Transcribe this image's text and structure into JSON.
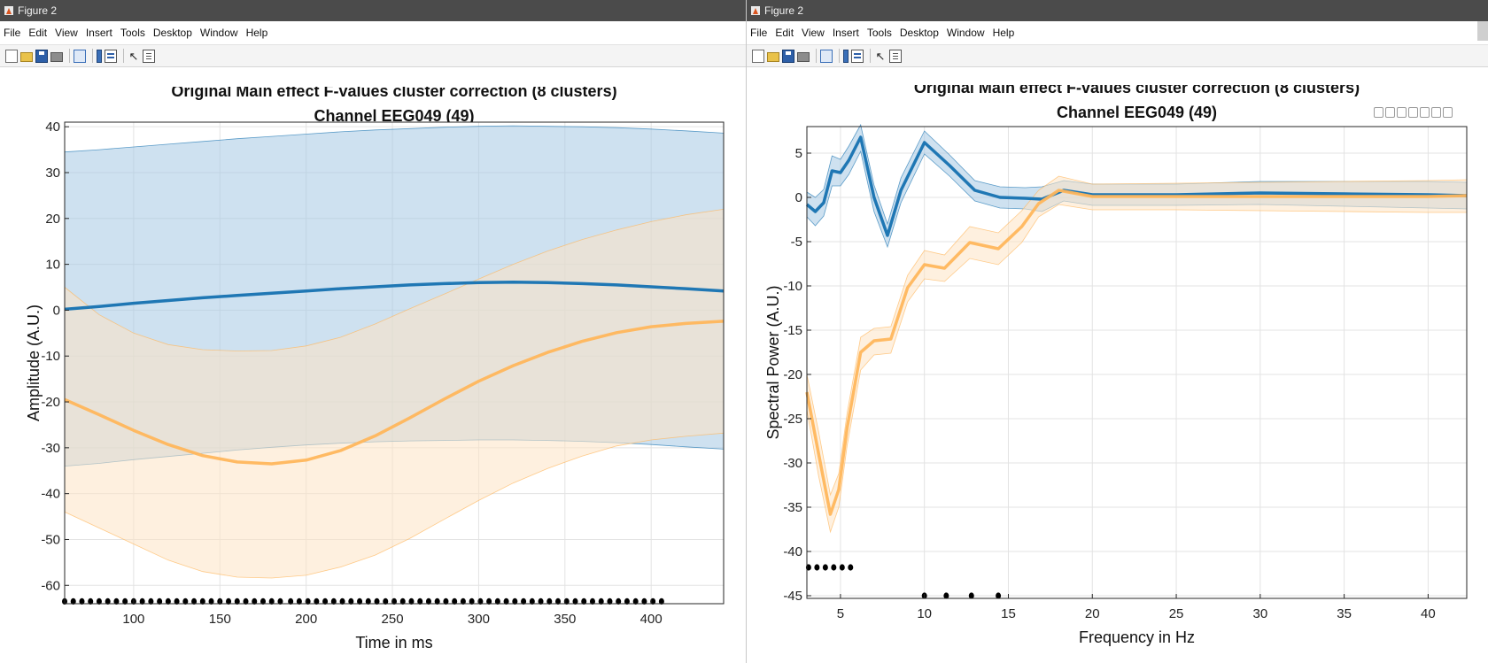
{
  "windows": [
    {
      "title": "Figure 2",
      "menu": [
        "File",
        "Edit",
        "View",
        "Insert",
        "Tools",
        "Desktop",
        "Window",
        "Help"
      ],
      "toolbar_icons": [
        "new-figure-icon",
        "open-file-icon",
        "save-icon",
        "print-icon",
        "link-plot-icon",
        "insert-colorbar-icon",
        "insert-legend-icon",
        "edit-plot-arrow-icon",
        "open-property-inspector-icon"
      ]
    },
    {
      "title": "Figure 2",
      "menu": [
        "File",
        "Edit",
        "View",
        "Insert",
        "Tools",
        "Desktop",
        "Window",
        "Help"
      ],
      "toolbar_icons": [
        "new-figure-icon",
        "open-file-icon",
        "save-icon",
        "print-icon",
        "link-plot-icon",
        "insert-colorbar-icon",
        "insert-legend-icon",
        "edit-plot-arrow-icon",
        "open-property-inspector-icon"
      ],
      "axes_toolbar_icons": [
        "export-icon",
        "brush-icon",
        "datatip-icon",
        "pan-icon",
        "zoom-in-icon",
        "zoom-out-icon",
        "home-icon"
      ]
    }
  ],
  "chart_data": [
    {
      "type": "line",
      "title": "Original Main effect F-values cluster correction (8 clusters)",
      "subtitle": "Channel EEG049 (49)",
      "xlabel": "Time in ms",
      "ylabel": "Amplitude (A.U.)",
      "xlim": [
        60,
        442
      ],
      "ylim": [
        -64,
        41
      ],
      "xticks": [
        100,
        150,
        200,
        250,
        300,
        350,
        400
      ],
      "yticks": [
        40,
        30,
        20,
        10,
        0,
        -10,
        -20,
        -30,
        -40,
        -50,
        -60
      ],
      "grid": true,
      "colors": {
        "blue": "#1f77b4",
        "blue_fill": "#a6c8e4",
        "orange": "#ffb65c",
        "orange_fill": "#fde3c4"
      },
      "series": [
        {
          "color": "blue",
          "x": [
            60,
            80,
            100,
            120,
            140,
            160,
            180,
            200,
            220,
            240,
            260,
            280,
            300,
            320,
            340,
            360,
            380,
            400,
            420,
            442
          ],
          "y": [
            0.2,
            0.8,
            1.5,
            2.1,
            2.7,
            3.2,
            3.7,
            4.2,
            4.7,
            5.1,
            5.5,
            5.8,
            6.0,
            6.1,
            6.0,
            5.8,
            5.5,
            5.1,
            4.7,
            4.2
          ],
          "upper": [
            34.5,
            35.0,
            35.6,
            36.2,
            36.8,
            37.4,
            37.9,
            38.4,
            38.9,
            39.3,
            39.6,
            39.9,
            40.1,
            40.2,
            40.1,
            40.0,
            39.8,
            39.5,
            39.1,
            38.6
          ],
          "lower": [
            -34.0,
            -33.4,
            -32.6,
            -31.9,
            -31.2,
            -30.5,
            -29.9,
            -29.4,
            -29.0,
            -28.7,
            -28.5,
            -28.4,
            -28.3,
            -28.3,
            -28.4,
            -28.6,
            -28.9,
            -29.3,
            -29.8,
            -30.3
          ]
        },
        {
          "color": "orange",
          "x": [
            60,
            80,
            100,
            120,
            140,
            160,
            180,
            200,
            220,
            240,
            260,
            280,
            300,
            320,
            340,
            360,
            380,
            400,
            420,
            442
          ],
          "y": [
            -19.5,
            -22.8,
            -26.2,
            -29.3,
            -31.7,
            -33.1,
            -33.5,
            -32.7,
            -30.6,
            -27.4,
            -23.5,
            -19.4,
            -15.5,
            -12.1,
            -9.2,
            -6.8,
            -4.9,
            -3.6,
            -2.9,
            -2.4
          ],
          "upper": [
            5.0,
            -1.0,
            -5.0,
            -7.5,
            -8.6,
            -8.9,
            -8.8,
            -7.8,
            -5.9,
            -3.0,
            0.3,
            3.5,
            6.8,
            10.0,
            12.9,
            15.4,
            17.5,
            19.3,
            20.8,
            22.0
          ],
          "lower": [
            -44.0,
            -47.5,
            -51.0,
            -54.5,
            -57.0,
            -58.2,
            -58.4,
            -57.8,
            -56.0,
            -53.4,
            -49.8,
            -45.6,
            -41.5,
            -37.7,
            -34.5,
            -31.8,
            -29.6,
            -28.3,
            -27.5,
            -26.8
          ]
        }
      ],
      "significance_markers": {
        "y": -63.5,
        "x": [
          60,
          65,
          70,
          75,
          80,
          85,
          90,
          95,
          100,
          105,
          110,
          115,
          120,
          125,
          130,
          135,
          140,
          145,
          150,
          155,
          160,
          165,
          170,
          175,
          180,
          185,
          191,
          196,
          201,
          206,
          211,
          216,
          221,
          226,
          231,
          236,
          241,
          246,
          251,
          256,
          261,
          266,
          271,
          276,
          281,
          286,
          291,
          296,
          301,
          306,
          311,
          316,
          321,
          326,
          331,
          336,
          341,
          346,
          351,
          356,
          361,
          366,
          371,
          376,
          381,
          386,
          391,
          396,
          401,
          406
        ]
      }
    },
    {
      "type": "line",
      "title": "Original Main effect F-values cluster correction (8 clusters)",
      "subtitle": "Channel EEG049 (49)",
      "xlabel": "Frequency in Hz",
      "ylabel": "Spectral Power (A.U.)",
      "xlim": [
        3,
        42.3
      ],
      "ylim": [
        -45.3,
        8
      ],
      "xticks": [
        5,
        10,
        15,
        20,
        25,
        30,
        35,
        40
      ],
      "yticks": [
        5,
        0,
        -5,
        -10,
        -15,
        -20,
        -25,
        -30,
        -35,
        -40,
        -45
      ],
      "grid": true,
      "colors": {
        "blue": "#1f77b4",
        "blue_fill": "#a6c8e4",
        "orange": "#ffb65c",
        "orange_fill": "#fde3c4"
      },
      "series": [
        {
          "color": "blue",
          "x": [
            3.0,
            3.5,
            4.0,
            4.5,
            5.0,
            5.5,
            6.2,
            7.0,
            7.8,
            8.6,
            10.0,
            11.5,
            13.0,
            14.5,
            16.0,
            17.0,
            18.3,
            20.0,
            25.0,
            30.0,
            35.0,
            40.0,
            42.3
          ],
          "y": [
            -0.8,
            -1.6,
            -0.6,
            3.0,
            2.8,
            4.2,
            6.8,
            0.0,
            -4.3,
            0.8,
            6.2,
            3.6,
            0.8,
            0.0,
            -0.1,
            -0.2,
            0.8,
            0.3,
            0.3,
            0.5,
            0.4,
            0.3,
            0.2
          ],
          "upper": [
            0.6,
            0.0,
            0.9,
            4.7,
            4.3,
            5.8,
            8.2,
            1.4,
            -3.0,
            2.2,
            7.5,
            4.8,
            1.9,
            1.2,
            1.1,
            1.2,
            1.9,
            1.5,
            1.5,
            1.8,
            1.8,
            1.8,
            1.7
          ],
          "lower": [
            -2.2,
            -3.2,
            -2.1,
            1.3,
            1.3,
            2.6,
            5.2,
            -1.6,
            -5.6,
            -0.6,
            4.9,
            2.4,
            -0.4,
            -1.2,
            -1.3,
            -1.6,
            -0.4,
            -0.9,
            -0.9,
            -0.8,
            -1.0,
            -1.2,
            -1.3
          ]
        },
        {
          "color": "orange",
          "x": [
            3.0,
            3.7,
            4.4,
            4.9,
            5.4,
            6.2,
            7.0,
            8.0,
            9.0,
            10.0,
            11.2,
            12.7,
            14.4,
            15.8,
            16.8,
            18.0,
            20.0,
            25.0,
            30.0,
            35.0,
            40.0,
            42.3
          ],
          "y": [
            -22.0,
            -29.0,
            -35.8,
            -33.0,
            -26.0,
            -17.5,
            -16.2,
            -16.0,
            -10.2,
            -7.6,
            -8.0,
            -5.1,
            -5.8,
            -3.3,
            -0.7,
            0.8,
            0.1,
            0.1,
            0.1,
            0.1,
            0.1,
            0.2
          ],
          "upper": [
            -20.0,
            -26.5,
            -33.6,
            -31.2,
            -24.3,
            -15.8,
            -14.8,
            -14.6,
            -8.8,
            -6.0,
            -6.5,
            -3.3,
            -4.0,
            -1.5,
            0.8,
            2.4,
            1.5,
            1.6,
            1.7,
            1.8,
            1.9,
            2.0
          ],
          "lower": [
            -24.0,
            -31.5,
            -37.8,
            -35.0,
            -28.0,
            -19.5,
            -17.8,
            -17.6,
            -11.8,
            -9.2,
            -9.5,
            -6.9,
            -7.6,
            -5.1,
            -2.2,
            -0.8,
            -1.4,
            -1.4,
            -1.5,
            -1.6,
            -1.7,
            -1.7
          ]
        }
      ],
      "significance_markers": [
        {
          "y": -41.8,
          "x": [
            3.1,
            3.6,
            4.1,
            4.6,
            5.1,
            5.6
          ]
        },
        {
          "y": -45.0,
          "x": [
            10.0,
            11.3,
            12.8,
            14.4
          ]
        }
      ]
    }
  ]
}
